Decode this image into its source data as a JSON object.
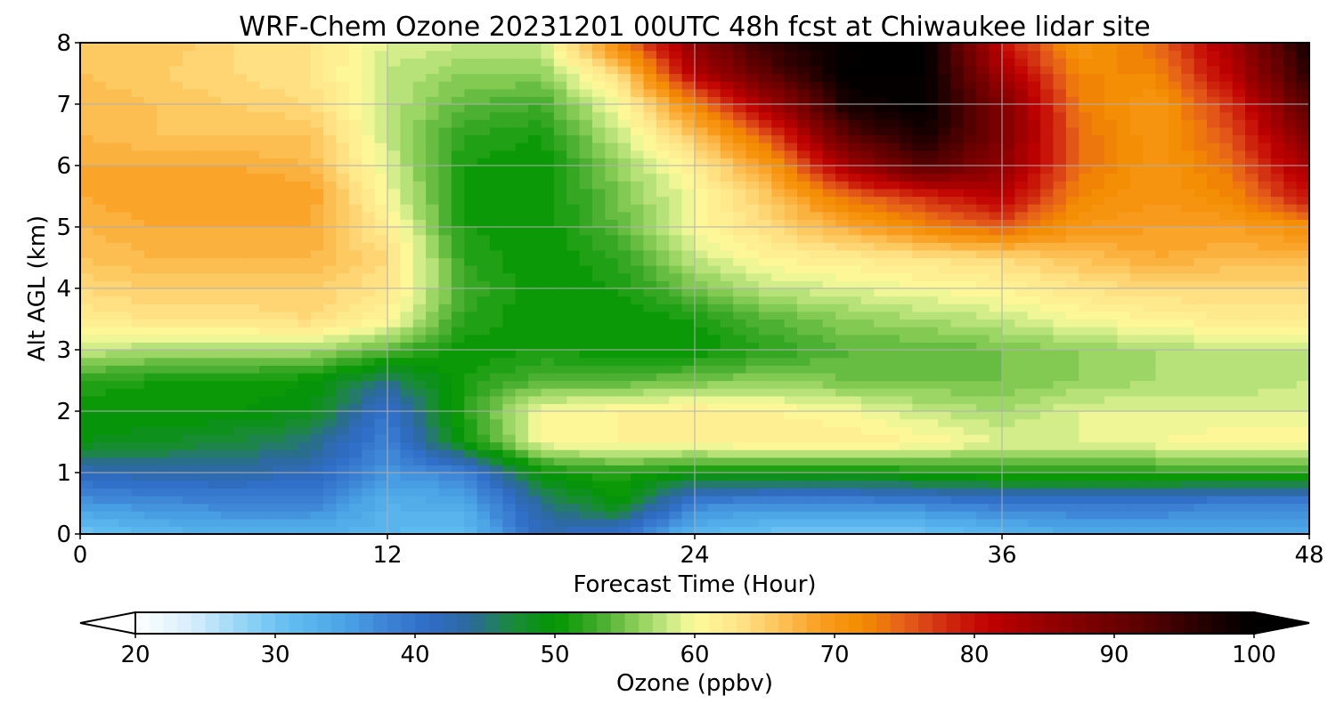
{
  "chart_data": {
    "type": "heatmap",
    "title": "WRF-Chem Ozone  20231201 00UTC 48h fcst at Chiwaukee lidar site",
    "xlabel": "Forecast Time (Hour)",
    "ylabel": "Alt AGL (km)",
    "xlim": [
      0,
      48
    ],
    "ylim": [
      0,
      8
    ],
    "xticks": [
      0,
      12,
      24,
      36,
      48
    ],
    "yticks": [
      0,
      1,
      2,
      3,
      4,
      5,
      6,
      7,
      8
    ],
    "grid": true,
    "x": [
      0,
      3,
      6,
      9,
      12,
      15,
      18,
      21,
      24,
      27,
      30,
      33,
      36,
      39,
      42,
      45,
      48
    ],
    "y": [
      0,
      0.5,
      1,
      1.5,
      2,
      2.5,
      3,
      3.5,
      4,
      4.5,
      5,
      5.5,
      6,
      6.5,
      7,
      7.5,
      8
    ],
    "z": [
      [
        30,
        32,
        33,
        33,
        32,
        31,
        42,
        40,
        32,
        30,
        29,
        30,
        32,
        34,
        34,
        34,
        34
      ],
      [
        36,
        37,
        38,
        38,
        33,
        34,
        44,
        50,
        38,
        37,
        37,
        38,
        39,
        39,
        39,
        38,
        38
      ],
      [
        42,
        43,
        43,
        42,
        36,
        38,
        50,
        52,
        50,
        50,
        50,
        51,
        52,
        52,
        52,
        52,
        52
      ],
      [
        49,
        48,
        47,
        45,
        38,
        50,
        60,
        61,
        61,
        62,
        62,
        61,
        59,
        59,
        60,
        61,
        61
      ],
      [
        50,
        50,
        50,
        49,
        40,
        52,
        60,
        61,
        62,
        61,
        60,
        58,
        57,
        59,
        59,
        59,
        59
      ],
      [
        52,
        51,
        51,
        50,
        45,
        51,
        54,
        54,
        55,
        56,
        55,
        55,
        55,
        56,
        57,
        57,
        58
      ],
      [
        58,
        57,
        57,
        57,
        54,
        50,
        51,
        50,
        50,
        52,
        54,
        54,
        55,
        56,
        57,
        58,
        58
      ],
      [
        62,
        63,
        63,
        64,
        61,
        52,
        50,
        50,
        51,
        54,
        56,
        57,
        58,
        60,
        61,
        62,
        62
      ],
      [
        64,
        65,
        65,
        65,
        63,
        53,
        50,
        51,
        55,
        58,
        59,
        60,
        61,
        63,
        64,
        64,
        64
      ],
      [
        66,
        67,
        67,
        67,
        64,
        52,
        50,
        52,
        58,
        61,
        62,
        63,
        64,
        66,
        68,
        67,
        67
      ],
      [
        67,
        68,
        68,
        68,
        62,
        51,
        50,
        54,
        60,
        64,
        68,
        72,
        75,
        70,
        69,
        69,
        71
      ],
      [
        68,
        69,
        69,
        69,
        60,
        51,
        50,
        55,
        60,
        66,
        74,
        78,
        82,
        72,
        70,
        72,
        80
      ],
      [
        68,
        68,
        68,
        67,
        59,
        51,
        50,
        56,
        62,
        70,
        84,
        92,
        86,
        74,
        70,
        74,
        84
      ],
      [
        67,
        66,
        66,
        66,
        58,
        52,
        51,
        58,
        66,
        76,
        92,
        98,
        88,
        74,
        70,
        76,
        88
      ],
      [
        67,
        66,
        65,
        64,
        58,
        54,
        53,
        60,
        72,
        84,
        98,
        100,
        88,
        73,
        70,
        78,
        92
      ],
      [
        66,
        65,
        64,
        63,
        58,
        56,
        56,
        64,
        82,
        92,
        100,
        100,
        84,
        72,
        72,
        82,
        96
      ],
      [
        66,
        66,
        64,
        63,
        59,
        58,
        58,
        72,
        86,
        96,
        100,
        100,
        80,
        70,
        74,
        84,
        98
      ]
    ],
    "colorbar": {
      "label": "Ozone  (ppbv)",
      "min": 20,
      "max": 100,
      "ticks": [
        20,
        30,
        40,
        50,
        60,
        70,
        80,
        90,
        100
      ],
      "extend": "both",
      "orientation": "horizontal",
      "levels": 80,
      "colormap": [
        [
          20,
          "#ffffff"
        ],
        [
          24,
          "#d6eefc"
        ],
        [
          28,
          "#8fd3f5"
        ],
        [
          31,
          "#62bdf0"
        ],
        [
          35,
          "#4aa3e4"
        ],
        [
          38,
          "#3d83d6"
        ],
        [
          41,
          "#2f6cc6"
        ],
        [
          44,
          "#2c6a9c"
        ],
        [
          47,
          "#1b8a3a"
        ],
        [
          50,
          "#009600"
        ],
        [
          53,
          "#3faa2a"
        ],
        [
          56,
          "#8fd05a"
        ],
        [
          58,
          "#c4e884"
        ],
        [
          60,
          "#fdfa9a"
        ],
        [
          63,
          "#ffe58a"
        ],
        [
          66,
          "#fcc55a"
        ],
        [
          69,
          "#f99d20"
        ],
        [
          72,
          "#f38b00"
        ],
        [
          75,
          "#e6601a"
        ],
        [
          78,
          "#d02a10"
        ],
        [
          81,
          "#c00000"
        ],
        [
          86,
          "#8e0000"
        ],
        [
          92,
          "#5a0000"
        ],
        [
          97,
          "#1e0000"
        ],
        [
          100,
          "#000000"
        ]
      ]
    }
  }
}
